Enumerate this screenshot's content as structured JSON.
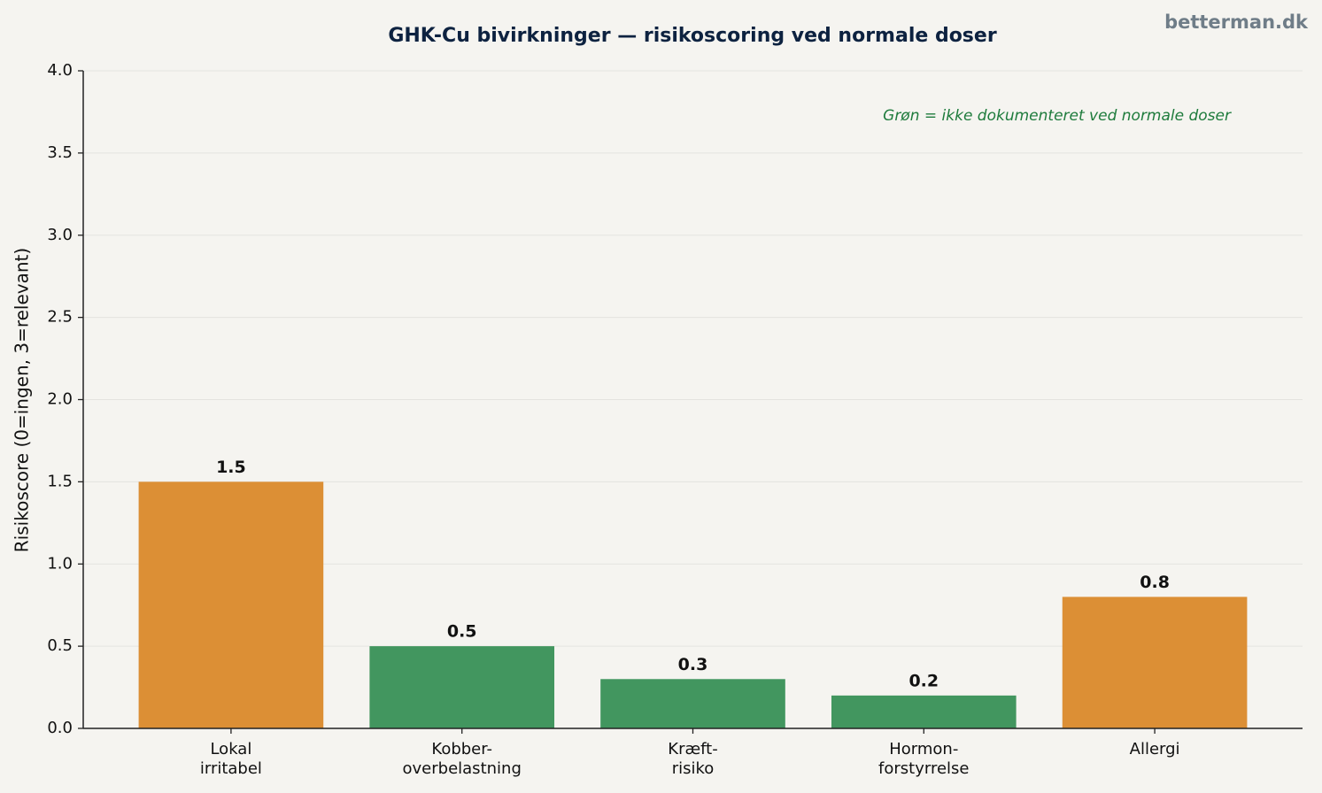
{
  "chart_data": {
    "type": "bar",
    "title": "GHK-Cu bivirkninger — risikoscoring ved normale doser",
    "watermark": "betterman.dk",
    "annotation": "Grøn = ikke dokumenteret ved normale doser",
    "y_label": "Risikoscore (0=ingen, 3=relevant)",
    "categories": [
      "Lokal\nirritabel",
      "Kobber-\noverbelastning",
      "Kræft-\nrisiko",
      "Hormon-\nforstyrrelse",
      "Allergi"
    ],
    "values": [
      1.5,
      0.5,
      0.3,
      0.2,
      0.8
    ],
    "colors": [
      "#dc8f35",
      "#42965f",
      "#42965f",
      "#42965f",
      "#dc8f35"
    ],
    "ylim": [
      0,
      4
    ],
    "yticks": [
      {
        "value": 0,
        "label": "0.0"
      },
      0.5,
      {
        "value": 1,
        "label": "1.0"
      },
      1.5,
      {
        "value": 2,
        "label": "2.0"
      },
      2.5,
      {
        "value": 3,
        "label": "3.0"
      },
      3.5,
      {
        "value": 4,
        "label": "4.0"
      }
    ],
    "grid": true
  }
}
